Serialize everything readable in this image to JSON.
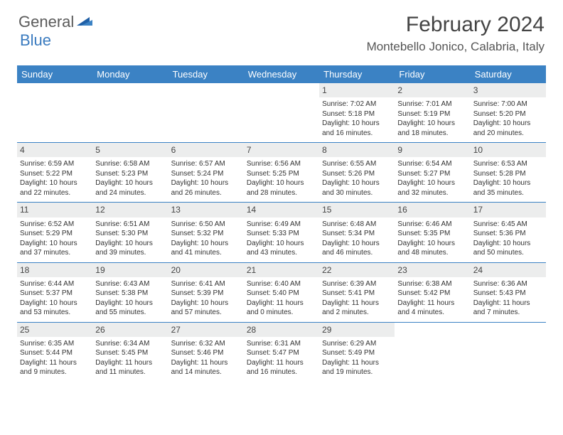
{
  "logo": {
    "text1": "General",
    "text2": "Blue"
  },
  "title": "February 2024",
  "location": "Montebello Jonico, Calabria, Italy",
  "colors": {
    "header_bg": "#3b82c4",
    "header_text": "#ffffff",
    "daybar_bg": "#eceded",
    "border": "#3b82c4",
    "body_text": "#333333",
    "title_text": "#444444",
    "logo_gray": "#5a5a5a",
    "logo_blue": "#3b7bbf"
  },
  "weekdays": [
    "Sunday",
    "Monday",
    "Tuesday",
    "Wednesday",
    "Thursday",
    "Friday",
    "Saturday"
  ],
  "weeks": [
    [
      null,
      null,
      null,
      null,
      {
        "d": "1",
        "sr": "Sunrise: 7:02 AM",
        "ss": "Sunset: 5:18 PM",
        "dl1": "Daylight: 10 hours",
        "dl2": "and 16 minutes."
      },
      {
        "d": "2",
        "sr": "Sunrise: 7:01 AM",
        "ss": "Sunset: 5:19 PM",
        "dl1": "Daylight: 10 hours",
        "dl2": "and 18 minutes."
      },
      {
        "d": "3",
        "sr": "Sunrise: 7:00 AM",
        "ss": "Sunset: 5:20 PM",
        "dl1": "Daylight: 10 hours",
        "dl2": "and 20 minutes."
      }
    ],
    [
      {
        "d": "4",
        "sr": "Sunrise: 6:59 AM",
        "ss": "Sunset: 5:22 PM",
        "dl1": "Daylight: 10 hours",
        "dl2": "and 22 minutes."
      },
      {
        "d": "5",
        "sr": "Sunrise: 6:58 AM",
        "ss": "Sunset: 5:23 PM",
        "dl1": "Daylight: 10 hours",
        "dl2": "and 24 minutes."
      },
      {
        "d": "6",
        "sr": "Sunrise: 6:57 AM",
        "ss": "Sunset: 5:24 PM",
        "dl1": "Daylight: 10 hours",
        "dl2": "and 26 minutes."
      },
      {
        "d": "7",
        "sr": "Sunrise: 6:56 AM",
        "ss": "Sunset: 5:25 PM",
        "dl1": "Daylight: 10 hours",
        "dl2": "and 28 minutes."
      },
      {
        "d": "8",
        "sr": "Sunrise: 6:55 AM",
        "ss": "Sunset: 5:26 PM",
        "dl1": "Daylight: 10 hours",
        "dl2": "and 30 minutes."
      },
      {
        "d": "9",
        "sr": "Sunrise: 6:54 AM",
        "ss": "Sunset: 5:27 PM",
        "dl1": "Daylight: 10 hours",
        "dl2": "and 32 minutes."
      },
      {
        "d": "10",
        "sr": "Sunrise: 6:53 AM",
        "ss": "Sunset: 5:28 PM",
        "dl1": "Daylight: 10 hours",
        "dl2": "and 35 minutes."
      }
    ],
    [
      {
        "d": "11",
        "sr": "Sunrise: 6:52 AM",
        "ss": "Sunset: 5:29 PM",
        "dl1": "Daylight: 10 hours",
        "dl2": "and 37 minutes."
      },
      {
        "d": "12",
        "sr": "Sunrise: 6:51 AM",
        "ss": "Sunset: 5:30 PM",
        "dl1": "Daylight: 10 hours",
        "dl2": "and 39 minutes."
      },
      {
        "d": "13",
        "sr": "Sunrise: 6:50 AM",
        "ss": "Sunset: 5:32 PM",
        "dl1": "Daylight: 10 hours",
        "dl2": "and 41 minutes."
      },
      {
        "d": "14",
        "sr": "Sunrise: 6:49 AM",
        "ss": "Sunset: 5:33 PM",
        "dl1": "Daylight: 10 hours",
        "dl2": "and 43 minutes."
      },
      {
        "d": "15",
        "sr": "Sunrise: 6:48 AM",
        "ss": "Sunset: 5:34 PM",
        "dl1": "Daylight: 10 hours",
        "dl2": "and 46 minutes."
      },
      {
        "d": "16",
        "sr": "Sunrise: 6:46 AM",
        "ss": "Sunset: 5:35 PM",
        "dl1": "Daylight: 10 hours",
        "dl2": "and 48 minutes."
      },
      {
        "d": "17",
        "sr": "Sunrise: 6:45 AM",
        "ss": "Sunset: 5:36 PM",
        "dl1": "Daylight: 10 hours",
        "dl2": "and 50 minutes."
      }
    ],
    [
      {
        "d": "18",
        "sr": "Sunrise: 6:44 AM",
        "ss": "Sunset: 5:37 PM",
        "dl1": "Daylight: 10 hours",
        "dl2": "and 53 minutes."
      },
      {
        "d": "19",
        "sr": "Sunrise: 6:43 AM",
        "ss": "Sunset: 5:38 PM",
        "dl1": "Daylight: 10 hours",
        "dl2": "and 55 minutes."
      },
      {
        "d": "20",
        "sr": "Sunrise: 6:41 AM",
        "ss": "Sunset: 5:39 PM",
        "dl1": "Daylight: 10 hours",
        "dl2": "and 57 minutes."
      },
      {
        "d": "21",
        "sr": "Sunrise: 6:40 AM",
        "ss": "Sunset: 5:40 PM",
        "dl1": "Daylight: 11 hours",
        "dl2": "and 0 minutes."
      },
      {
        "d": "22",
        "sr": "Sunrise: 6:39 AM",
        "ss": "Sunset: 5:41 PM",
        "dl1": "Daylight: 11 hours",
        "dl2": "and 2 minutes."
      },
      {
        "d": "23",
        "sr": "Sunrise: 6:38 AM",
        "ss": "Sunset: 5:42 PM",
        "dl1": "Daylight: 11 hours",
        "dl2": "and 4 minutes."
      },
      {
        "d": "24",
        "sr": "Sunrise: 6:36 AM",
        "ss": "Sunset: 5:43 PM",
        "dl1": "Daylight: 11 hours",
        "dl2": "and 7 minutes."
      }
    ],
    [
      {
        "d": "25",
        "sr": "Sunrise: 6:35 AM",
        "ss": "Sunset: 5:44 PM",
        "dl1": "Daylight: 11 hours",
        "dl2": "and 9 minutes."
      },
      {
        "d": "26",
        "sr": "Sunrise: 6:34 AM",
        "ss": "Sunset: 5:45 PM",
        "dl1": "Daylight: 11 hours",
        "dl2": "and 11 minutes."
      },
      {
        "d": "27",
        "sr": "Sunrise: 6:32 AM",
        "ss": "Sunset: 5:46 PM",
        "dl1": "Daylight: 11 hours",
        "dl2": "and 14 minutes."
      },
      {
        "d": "28",
        "sr": "Sunrise: 6:31 AM",
        "ss": "Sunset: 5:47 PM",
        "dl1": "Daylight: 11 hours",
        "dl2": "and 16 minutes."
      },
      {
        "d": "29",
        "sr": "Sunrise: 6:29 AM",
        "ss": "Sunset: 5:49 PM",
        "dl1": "Daylight: 11 hours",
        "dl2": "and 19 minutes."
      },
      null,
      null
    ]
  ]
}
